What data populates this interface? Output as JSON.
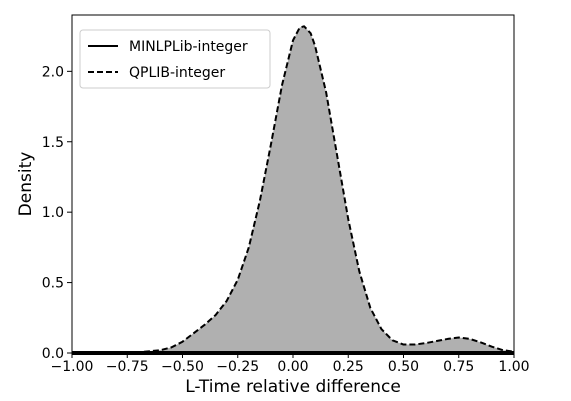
{
  "chart_data": {
    "type": "area",
    "title": "",
    "xlabel": "L-Time relative difference",
    "ylabel": "Density",
    "xlim": [
      -1.0,
      1.0
    ],
    "ylim": [
      0.0,
      2.4
    ],
    "xticks": [
      "−1.00",
      "−0.75",
      "−0.50",
      "−0.25",
      "0.00",
      "0.25",
      "0.50",
      "0.75",
      "1.00"
    ],
    "xtick_values": [
      -1.0,
      -0.75,
      -0.5,
      -0.25,
      0.0,
      0.25,
      0.5,
      0.75,
      1.0
    ],
    "yticks": [
      "0.0",
      "0.5",
      "1.0",
      "1.5",
      "2.0"
    ],
    "ytick_values": [
      0.0,
      0.5,
      1.0,
      1.5,
      2.0
    ],
    "grid": false,
    "legend_position": "top-left",
    "fill_color": "#b0b0b0",
    "series": [
      {
        "name": "MINLPLib-integer",
        "style": "solid",
        "color": "#000000",
        "x": [
          -1.0,
          -0.5,
          0.0,
          0.5,
          1.0
        ],
        "y": [
          0.0,
          0.0,
          0.0,
          0.0,
          0.0
        ]
      },
      {
        "name": "QPLIB-integer",
        "style": "dashed",
        "color": "#000000",
        "filled": true,
        "x": [
          -1.0,
          -0.8,
          -0.7,
          -0.6,
          -0.55,
          -0.5,
          -0.45,
          -0.4,
          -0.35,
          -0.3,
          -0.25,
          -0.2,
          -0.15,
          -0.1,
          -0.05,
          0.0,
          0.03,
          0.05,
          0.08,
          0.1,
          0.15,
          0.2,
          0.25,
          0.3,
          0.35,
          0.4,
          0.45,
          0.5,
          0.55,
          0.6,
          0.65,
          0.7,
          0.75,
          0.8,
          0.85,
          0.9,
          0.95,
          1.0
        ],
        "y": [
          0.0,
          0.0,
          0.005,
          0.02,
          0.04,
          0.08,
          0.14,
          0.2,
          0.27,
          0.37,
          0.52,
          0.75,
          1.08,
          1.48,
          1.9,
          2.22,
          2.31,
          2.32,
          2.27,
          2.18,
          1.85,
          1.4,
          0.95,
          0.58,
          0.32,
          0.17,
          0.09,
          0.06,
          0.06,
          0.07,
          0.085,
          0.1,
          0.11,
          0.1,
          0.075,
          0.045,
          0.02,
          0.01
        ]
      }
    ]
  }
}
